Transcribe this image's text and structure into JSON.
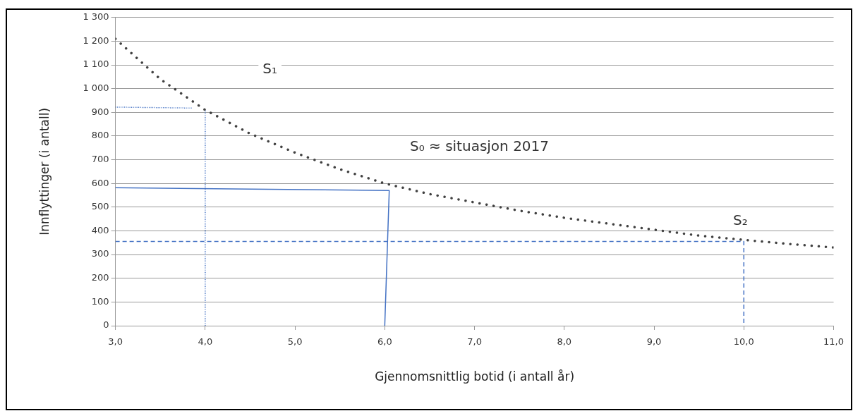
{
  "chart_data": {
    "type": "line",
    "xlabel": "Gjennomsnittlig botid (i antall år)",
    "ylabel": "Innflyttinger (i antall)",
    "xlim": [
      3,
      11
    ],
    "xticks": [
      {
        "value": 3,
        "label": "3,0"
      },
      {
        "value": 4,
        "label": "4,0"
      },
      {
        "value": 5,
        "label": "5,0"
      },
      {
        "value": 6,
        "label": "6,0"
      },
      {
        "value": 7,
        "label": "7,0"
      },
      {
        "value": 8,
        "label": "8,0"
      },
      {
        "value": 9,
        "label": "9,0"
      },
      {
        "value": 10,
        "label": "10,0"
      },
      {
        "value": 11,
        "label": "11,0"
      }
    ],
    "ylim": [
      0,
      1300
    ],
    "yticks": [
      0,
      100,
      200,
      300,
      400,
      500,
      600,
      700,
      800,
      900,
      {
        "value": 1000,
        "label": "1 000"
      },
      {
        "value": 1100,
        "label": "1 100"
      },
      {
        "value": 1200,
        "label": "1 200"
      },
      {
        "value": 1300,
        "label": "1 300"
      }
    ],
    "grid": "y",
    "legend": false,
    "marker": "none",
    "series": [
      {
        "color": "#404040",
        "line_style": "dotted",
        "x": [
          3,
          3.5,
          4,
          4.5,
          5,
          5.5,
          6,
          6.5,
          7,
          7.5,
          8,
          8.5,
          9,
          9.5,
          10,
          10.5,
          11
        ],
        "values": [
          1210,
          1040,
          910,
          810,
          730,
          660,
          600,
          555,
          520,
          485,
          455,
          430,
          405,
          380,
          362,
          345,
          330
        ]
      },
      {
        "color": "#4472c4",
        "line_style": "dotted",
        "x": [
          3,
          3.85
        ],
        "values": [
          922,
          918
        ]
      },
      {
        "color": "#4472c4",
        "line_style": "dotted",
        "x": [
          4,
          4
        ],
        "values": [
          0,
          910
        ]
      },
      {
        "color": "#4472c4",
        "line_style": "solid",
        "x": [
          3,
          6.05,
          6
        ],
        "values": [
          582,
          570,
          0
        ]
      },
      {
        "color": "#4472c4",
        "line_style": "dashed",
        "x": [
          3,
          10,
          10
        ],
        "values": [
          355,
          355,
          0
        ]
      }
    ],
    "annotations": [
      "S₁",
      "S₀ ≈ situasjon 2017",
      "S₂"
    ]
  }
}
